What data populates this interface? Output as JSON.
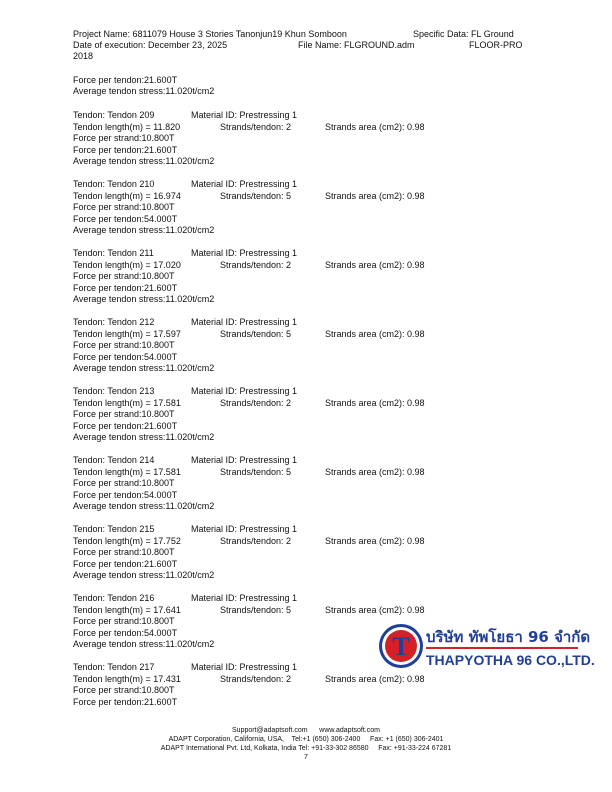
{
  "header": {
    "project": "Project Name: 6811079 House 3 Stories Tanonjun19 Khun Somboon",
    "specific": "Specific Data: FL Ground",
    "date": "Date of execution: December 23, 2025",
    "file": "File Name: FLGROUND.adm",
    "product": "FLOOR-PRO",
    "year": "2018"
  },
  "carryover": {
    "force_tendon": "Force per tendon:21.600T",
    "avg_stress": "Average tendon stress:11.020t/cm2"
  },
  "tendons": [
    {
      "tendon": "Tendon: Tendon 209",
      "material": "Material ID: Prestressing 1",
      "length": "Tendon length(m) = 11.820",
      "strands": "Strands/tendon: 2",
      "area": "Strands area (cm2): 0.98",
      "force_strand": "Force per strand:10.800T",
      "force_tendon": "Force per tendon:21.600T",
      "avg_stress": "Average tendon stress:11.020t/cm2"
    },
    {
      "tendon": "Tendon: Tendon 210",
      "material": "Material ID: Prestressing 1",
      "length": "Tendon length(m) = 16.974",
      "strands": "Strands/tendon: 5",
      "area": "Strands area (cm2): 0.98",
      "force_strand": "Force per strand:10.800T",
      "force_tendon": "Force per tendon:54.000T",
      "avg_stress": "Average tendon stress:11.020t/cm2"
    },
    {
      "tendon": "Tendon: Tendon 211",
      "material": "Material ID: Prestressing 1",
      "length": "Tendon length(m) = 17.020",
      "strands": "Strands/tendon: 2",
      "area": "Strands area (cm2): 0.98",
      "force_strand": "Force per strand:10.800T",
      "force_tendon": "Force per tendon:21.600T",
      "avg_stress": "Average tendon stress:11.020t/cm2"
    },
    {
      "tendon": "Tendon: Tendon 212",
      "material": "Material ID: Prestressing 1",
      "length": "Tendon length(m) = 17.597",
      "strands": "Strands/tendon: 5",
      "area": "Strands area (cm2): 0.98",
      "force_strand": "Force per strand:10.800T",
      "force_tendon": "Force per tendon:54.000T",
      "avg_stress": "Average tendon stress:11.020t/cm2"
    },
    {
      "tendon": "Tendon: Tendon 213",
      "material": "Material ID: Prestressing 1",
      "length": "Tendon length(m) = 17.581",
      "strands": "Strands/tendon: 2",
      "area": "Strands area (cm2): 0.98",
      "force_strand": "Force per strand:10.800T",
      "force_tendon": "Force per tendon:21.600T",
      "avg_stress": "Average tendon stress:11.020t/cm2"
    },
    {
      "tendon": "Tendon: Tendon 214",
      "material": "Material ID: Prestressing 1",
      "length": "Tendon length(m) = 17.581",
      "strands": "Strands/tendon: 5",
      "area": "Strands area (cm2): 0.98",
      "force_strand": "Force per strand:10.800T",
      "force_tendon": "Force per tendon:54.000T",
      "avg_stress": "Average tendon stress:11.020t/cm2"
    },
    {
      "tendon": "Tendon: Tendon 215",
      "material": "Material ID: Prestressing 1",
      "length": "Tendon length(m) = 17.752",
      "strands": "Strands/tendon: 2",
      "area": "Strands area (cm2): 0.98",
      "force_strand": "Force per strand:10.800T",
      "force_tendon": "Force per tendon:21.600T",
      "avg_stress": "Average tendon stress:11.020t/cm2"
    },
    {
      "tendon": "Tendon: Tendon 216",
      "material": "Material ID: Prestressing 1",
      "length": "Tendon length(m) = 17.641",
      "strands": "Strands/tendon: 5",
      "area": "Strands area (cm2): 0.98",
      "force_strand": "Force per strand:10.800T",
      "force_tendon": "Force per tendon:54.000T",
      "avg_stress": "Average tendon stress:11.020t/cm2"
    },
    {
      "tendon": "Tendon: Tendon 217",
      "material": "Material ID: Prestressing 1",
      "length": "Tendon length(m) = 17.431",
      "strands": "Strands/tendon: 2",
      "area": "Strands area (cm2): 0.98",
      "force_strand": "Force per strand:10.800T",
      "force_tendon": "Force per tendon:21.600T"
    }
  ],
  "logo": {
    "thai": "บริษัท ทัพโยธา 96 จำกัด",
    "english": "THAPYOTHA 96 CO.,LTD.",
    "letter": "T",
    "red": "#d42027",
    "blue": "#1f3f99"
  },
  "footer": {
    "line1": "Support@adaptsoft.com      www.adaptsoft.com",
    "line2": "ADAPT Corporation, California, USA,    Tel:+1 (650) 306-2400     Fax: +1 (650) 306-2401",
    "line3": "ADAPT International Pvt. Ltd, Kolkata, India Tel: +91-33-302 86580     Fax: +91-33-224 67281",
    "page": "7"
  }
}
